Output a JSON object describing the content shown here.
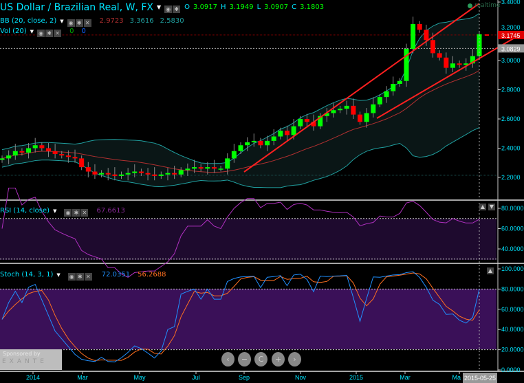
{
  "header": {
    "title": "US Dollar / Brazilian Real, W, FX",
    "ohlc": {
      "o_label": "O",
      "o": "3.0917",
      "h_label": "H",
      "h": "3.1949",
      "l_label": "L",
      "l": "3.0907",
      "c_label": "C",
      "c": "3.1803"
    },
    "realtime_label": "realtime"
  },
  "indicators": {
    "bb": {
      "label": "BB (20, close, 2)",
      "values": [
        "2.9723",
        "3.3616",
        "2.5830"
      ],
      "colors": [
        "#b03030",
        "#20a0a0",
        "#20a0a0"
      ]
    },
    "vol": {
      "label": "Vol (20)",
      "values": [
        "0",
        "0"
      ],
      "colors": [
        "#00b000",
        "#1060ff"
      ]
    },
    "rsi": {
      "label": "RSI (14, close)",
      "value": "67.6613"
    },
    "stoch": {
      "label": "Stoch (14, 3, 1)",
      "k": "72.0351",
      "d": "56.2688"
    }
  },
  "price_axis": {
    "ticks": [
      "3.4000",
      "3.2000",
      "3.0000",
      "2.8000",
      "2.6000",
      "2.4000",
      "2.2000"
    ],
    "last_price": "3.1745",
    "crosshair_price": "3.0829"
  },
  "rsi_axis": {
    "ticks": [
      "80.0000",
      "60.0000",
      "40.0000"
    ]
  },
  "stoch_axis": {
    "ticks": [
      "100.0000",
      "80.0000",
      "60.0000",
      "40.0000",
      "20.0000",
      "0.0000"
    ]
  },
  "time_axis": {
    "ticks": [
      "2014",
      "Mar",
      "May",
      "Jul",
      "Sep",
      "Nov",
      "2015",
      "Mar",
      "Ma"
    ],
    "crosshair_date": "2015-05-25"
  },
  "sponsor": {
    "line1": "Sponsored by",
    "line2": "EXANTE"
  },
  "nav": {
    "prev": "‹",
    "zoom_out": "−",
    "reset": "C",
    "zoom_in": "+",
    "next": "›"
  },
  "colors": {
    "up": "#00ff00",
    "down": "#ff0000",
    "bb": "#20a0a0",
    "bb_mid": "#b03030",
    "rsi": "#b030c0",
    "stoch_k": "#2090ff",
    "stoch_d": "#ff7020",
    "trend": "#ff2020",
    "text": "#00e5ff"
  },
  "chart_data": {
    "type": "candlestick",
    "interval": "weekly",
    "x_range": [
      "2013-11",
      "2015-05-25"
    ],
    "ylim": [
      2.1,
      3.4
    ],
    "close": [
      2.33,
      2.35,
      2.38,
      2.37,
      2.4,
      2.42,
      2.4,
      2.38,
      2.36,
      2.35,
      2.34,
      2.33,
      2.27,
      2.24,
      2.22,
      2.23,
      2.22,
      2.21,
      2.22,
      2.23,
      2.24,
      2.23,
      2.22,
      2.21,
      2.22,
      2.23,
      2.22,
      2.25,
      2.26,
      2.27,
      2.26,
      2.27,
      2.26,
      2.26,
      2.33,
      2.38,
      2.42,
      2.44,
      2.45,
      2.42,
      2.45,
      2.48,
      2.52,
      2.49,
      2.55,
      2.6,
      2.58,
      2.55,
      2.62,
      2.64,
      2.66,
      2.67,
      2.69,
      2.63,
      2.58,
      2.64,
      2.7,
      2.75,
      2.79,
      2.84,
      2.86,
      3.08,
      3.25,
      3.21,
      3.14,
      3.05,
      3.02,
      2.95,
      2.98,
      2.97,
      2.98,
      3.03,
      3.18
    ],
    "trend_lines": [
      {
        "from": [
          "2014-09",
          "2.22"
        ],
        "to": [
          "2015-05-25",
          "3.40"
        ]
      },
      {
        "from": [
          "2015-01",
          "2.58"
        ],
        "to": [
          "2015-06",
          "3.17"
        ]
      }
    ]
  }
}
